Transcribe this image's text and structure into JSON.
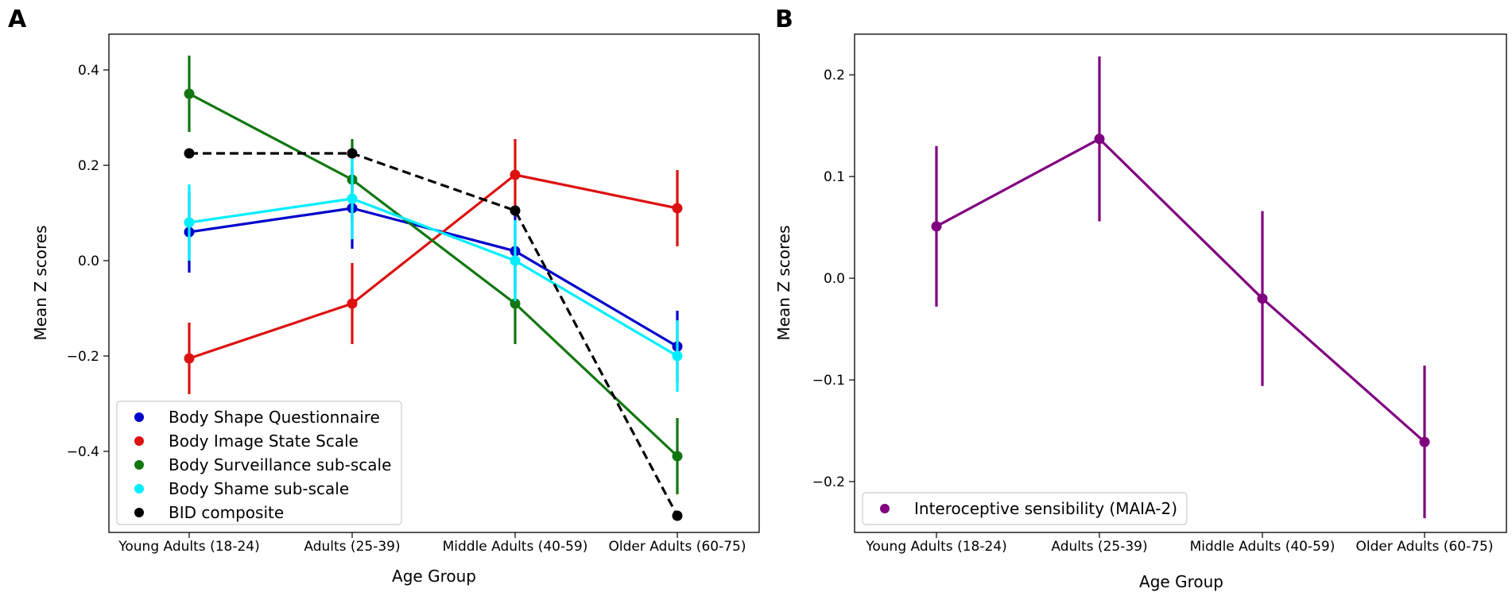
{
  "chart_data": [
    {
      "panel": "A",
      "type": "line",
      "categories": [
        "Young Adults (18-24)",
        "Adults (25-39)",
        "Middle Adults (40-59)",
        "Older Adults (60-75)"
      ],
      "xlabel": "Age Group",
      "ylabel": "Mean Z scores",
      "ylim": [
        -0.57,
        0.475
      ],
      "yticks": [
        0.4,
        0.2,
        0.0,
        -0.2,
        -0.4
      ],
      "ytick_labels": [
        "0.4",
        "0.2",
        "0.0",
        "−0.2",
        "−0.4"
      ],
      "legend_position": "lower-left",
      "series": [
        {
          "name": "Body Shape Questionnaire",
          "color": "#0000cc",
          "dash": "solid",
          "values": [
            0.06,
            0.11,
            0.02,
            -0.18
          ],
          "err": [
            0.085,
            0.085,
            0.085,
            0.075
          ]
        },
        {
          "name": "Body Image State Scale",
          "color": "#dd1111",
          "dash": "solid",
          "values": [
            -0.205,
            -0.09,
            0.18,
            0.11
          ],
          "err": [
            0.075,
            0.085,
            0.075,
            0.08
          ]
        },
        {
          "name": "Body Surveillance sub-scale",
          "color": "#117711",
          "dash": "solid",
          "values": [
            0.35,
            0.17,
            -0.09,
            -0.41
          ],
          "err": [
            0.08,
            0.085,
            0.085,
            0.08
          ]
        },
        {
          "name": "Body Shame sub-scale",
          "color": "#00eeff",
          "dash": "solid",
          "values": [
            0.08,
            0.13,
            0.0,
            -0.2
          ],
          "err": [
            0.08,
            0.085,
            0.085,
            0.075
          ]
        },
        {
          "name": "BID composite",
          "color": "#000000",
          "dash": "dashed",
          "values": [
            0.225,
            0.225,
            0.105,
            -0.535
          ],
          "err": [
            0,
            0,
            0,
            0
          ]
        }
      ]
    },
    {
      "panel": "B",
      "type": "line",
      "categories": [
        "Young Adults (18-24)",
        "Adults (25-39)",
        "Middle Adults (40-59)",
        "Older Adults (60-75)"
      ],
      "xlabel": "Age Group",
      "ylabel": "Mean Z scores",
      "ylim": [
        -0.25,
        0.24
      ],
      "yticks": [
        0.2,
        0.1,
        0.0,
        -0.1,
        -0.2
      ],
      "ytick_labels": [
        "0.2",
        "0.1",
        "0.0",
        "−0.1",
        "−0.2"
      ],
      "legend_position": "lower-left",
      "series": [
        {
          "name": "Interoceptive sensibility (MAIA-2)",
          "color": "#800080",
          "dash": "solid",
          "values": [
            0.051,
            0.137,
            -0.02,
            -0.161
          ],
          "err": [
            0.079,
            0.081,
            0.086,
            0.075
          ]
        }
      ]
    }
  ]
}
